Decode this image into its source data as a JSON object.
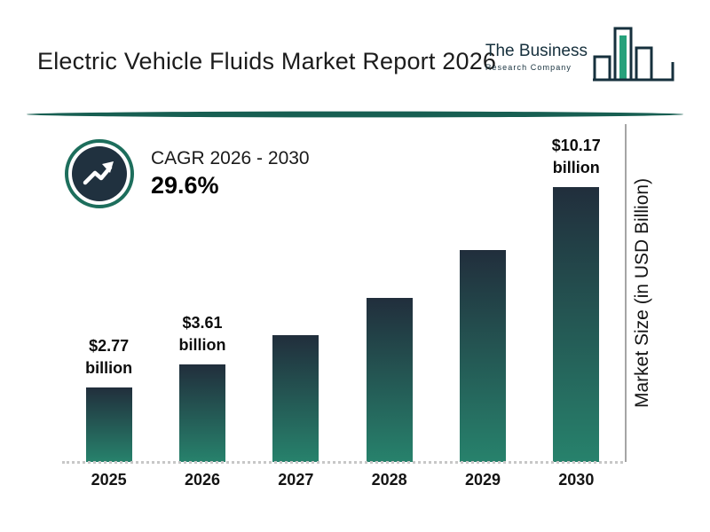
{
  "header": {
    "title": "Electric Vehicle Fluids Market Report 2026",
    "logo": {
      "line1": "The Business",
      "line2": "Research Company"
    }
  },
  "cagr": {
    "label": "CAGR 2026 - 2030",
    "value": "29.6%"
  },
  "chart_data": {
    "type": "bar",
    "title": "Electric Vehicle Fluids Market Report 2026",
    "categories": [
      "2025",
      "2026",
      "2027",
      "2028",
      "2029",
      "2030"
    ],
    "values": [
      2.77,
      3.61,
      4.68,
      6.06,
      7.85,
      10.17
    ],
    "value_labels": [
      {
        "line1": "$2.77",
        "line2": "billion"
      },
      {
        "line1": "$3.61",
        "line2": "billion"
      },
      null,
      null,
      null,
      {
        "line1": "$10.17",
        "line2": "billion"
      }
    ],
    "xlabel": "",
    "ylabel": "Market Size (in USD Billion)",
    "ylim": [
      0,
      10.17
    ],
    "grid": false,
    "legend": "none"
  },
  "colors": {
    "bar_top": "#212e3c",
    "bar_bottom": "#27826c",
    "divider_teal": "#175f52",
    "logo_navy": "#16303d",
    "logo_green": "#26a17b",
    "icon_ring_teal": "#1d6e5c",
    "icon_fill_navy": "#20313f"
  }
}
